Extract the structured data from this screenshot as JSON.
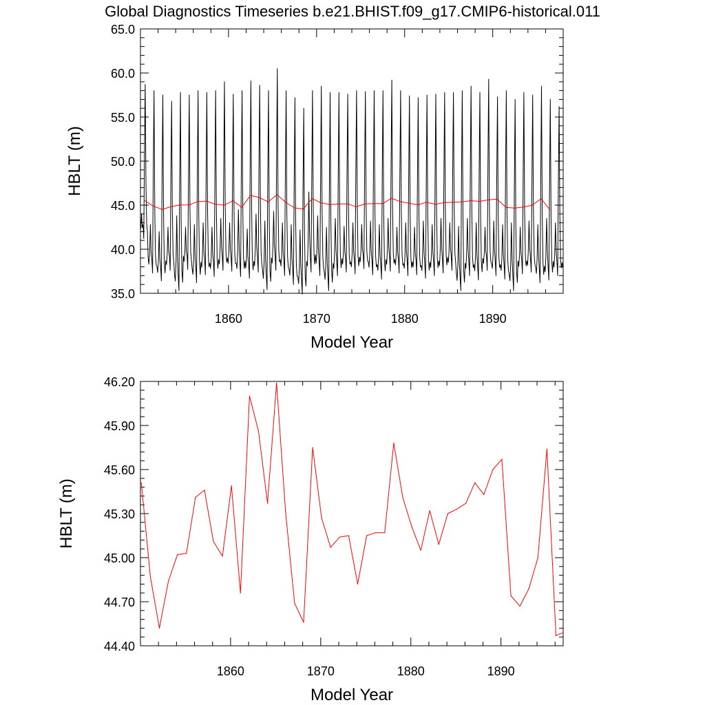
{
  "title": "Global Diagnostics Timeseries b.e21.BHIST.f09_g17.CMIP6-historical.011",
  "colors": {
    "monthly_line": "#000000",
    "annual_line": "#ff0000",
    "axis": "#000000"
  },
  "chart_data": [
    {
      "type": "line",
      "xlabel": "Model Year",
      "ylabel": "HBLT (m)",
      "xlim": [
        1850,
        1898
      ],
      "ylim": [
        35.0,
        65.0
      ],
      "xticks": [
        1860,
        1870,
        1880,
        1890
      ],
      "xtick_labels": [
        "1860",
        "1870",
        "1880",
        "1890"
      ],
      "yticks": [
        35,
        40,
        45,
        50,
        55,
        60,
        65
      ],
      "ytick_labels": [
        "35.0",
        "40.0",
        "45.0",
        "50.0",
        "55.0",
        "60.0",
        "65.0"
      ],
      "grid": false,
      "series": [
        {
          "style": "monthly",
          "color": "#000000",
          "x_start": 1850.04,
          "x_step": 0.0833333,
          "seasonal_min_by_year": [
            41.2,
            37.3,
            36.4,
            37.6,
            35.3,
            37.7,
            36.2,
            37.1,
            36.9,
            37.6,
            37.5,
            36.9,
            36.7,
            37.4,
            35.4,
            37.6,
            37.0,
            36.0,
            34.9,
            37.4,
            37.0,
            35.3,
            37.0,
            37.4,
            37.2,
            37.8,
            37.1,
            36.6,
            37.5,
            37.3,
            37.0,
            37.1,
            36.7,
            37.0,
            37.3,
            37.6,
            35.3,
            37.0,
            36.5,
            37.6,
            37.0,
            36.6,
            35.3,
            37.2,
            37.4,
            36.2,
            36.5,
            37.0
          ],
          "seasonal_max_by_year": [
            58.7,
            58.0,
            57.5,
            56.8,
            57.8,
            57.5,
            58.0,
            57.8,
            58.0,
            59.0,
            57.6,
            58.0,
            59.1,
            58.6,
            58.0,
            60.5,
            58.0,
            57.2,
            56.0,
            58.0,
            58.5,
            57.8,
            57.8,
            57.6,
            58.0,
            57.9,
            58.0,
            58.0,
            59.2,
            58.0,
            57.4,
            57.2,
            57.5,
            57.6,
            57.8,
            57.8,
            58.0,
            58.5,
            57.8,
            59.3,
            57.3,
            58.0,
            57.0,
            57.8,
            57.5,
            58.5,
            57.0,
            56.2
          ],
          "secondary_peak_by_year": [
            44.0,
            42.8,
            42.0,
            42.5,
            43.8,
            42.5,
            42.8,
            43.0,
            42.5,
            43.5,
            43.0,
            44.5,
            42.3,
            44.0,
            43.2,
            44.3,
            43.0,
            42.8,
            42.2,
            46.5,
            43.8,
            42.5,
            43.5,
            42.6,
            43.0,
            42.8,
            43.2,
            42.8,
            43.5,
            42.5,
            43.0,
            42.5,
            43.2,
            42.8,
            43.5,
            43.0,
            42.6,
            43.5,
            43.0,
            42.5,
            43.2,
            42.8,
            43.0,
            42.5,
            43.2,
            42.8,
            43.5,
            43.0
          ]
        },
        {
          "style": "annual",
          "color": "#ff0000",
          "x": [
            1850.5,
            1851.5,
            1852.5,
            1853.5,
            1854.5,
            1855.5,
            1856.5,
            1857.5,
            1858.5,
            1859.5,
            1860.5,
            1861.5,
            1862.5,
            1863.5,
            1864.5,
            1865.5,
            1866.5,
            1867.5,
            1868.5,
            1869.5,
            1870.5,
            1871.5,
            1872.5,
            1873.5,
            1874.5,
            1875.5,
            1876.5,
            1877.5,
            1878.5,
            1879.5,
            1880.5,
            1881.5,
            1882.5,
            1883.5,
            1884.5,
            1885.5,
            1886.5,
            1887.5,
            1888.5,
            1889.5,
            1890.5,
            1891.5,
            1892.5,
            1893.5,
            1894.5,
            1895.5,
            1896.5
          ],
          "values": [
            45.51,
            44.87,
            44.52,
            44.84,
            45.02,
            45.03,
            45.41,
            45.46,
            45.11,
            45.01,
            45.49,
            44.76,
            46.1,
            45.86,
            45.37,
            46.19,
            45.31,
            44.69,
            44.56,
            45.75,
            45.27,
            45.07,
            45.14,
            45.15,
            44.82,
            45.15,
            45.17,
            45.17,
            45.78,
            45.41,
            45.21,
            45.05,
            45.32,
            45.09,
            45.3,
            45.33,
            45.37,
            45.51,
            45.43,
            45.6,
            45.67,
            44.74,
            44.67,
            44.79,
            45.0,
            45.74,
            44.47
          ]
        }
      ]
    },
    {
      "type": "line",
      "xlabel": "Model Year",
      "ylabel": "HBLT (m)",
      "xlim": [
        1850,
        1896.9
      ],
      "ylim": [
        44.4,
        46.2
      ],
      "xticks": [
        1860,
        1870,
        1880,
        1890
      ],
      "xtick_labels": [
        "1860",
        "1870",
        "1880",
        "1890"
      ],
      "yticks": [
        44.4,
        44.7,
        45.0,
        45.3,
        45.6,
        45.9,
        46.2
      ],
      "ytick_labels": [
        "44.40",
        "44.70",
        "45.00",
        "45.30",
        "45.60",
        "45.90",
        "46.20"
      ],
      "grid": false,
      "series": [
        {
          "style": "annual",
          "color": "#ff0000",
          "x": [
            1850.1,
            1851.1,
            1852.1,
            1853.1,
            1854.1,
            1855.1,
            1856.1,
            1857.1,
            1858.1,
            1859.1,
            1860.1,
            1861.1,
            1862.1,
            1863.1,
            1864.1,
            1865.1,
            1866.1,
            1867.1,
            1868.1,
            1869.1,
            1870.1,
            1871.1,
            1872.1,
            1873.1,
            1874.1,
            1875.1,
            1876.1,
            1877.1,
            1878.1,
            1879.1,
            1880.1,
            1881.1,
            1882.1,
            1883.1,
            1884.1,
            1885.1,
            1886.1,
            1887.1,
            1888.1,
            1889.1,
            1890.1,
            1891.1,
            1892.1,
            1893.1,
            1894.1,
            1895.1,
            1896.1,
            1896.9
          ],
          "values": [
            45.51,
            44.87,
            44.52,
            44.84,
            45.02,
            45.03,
            45.41,
            45.46,
            45.11,
            45.01,
            45.49,
            44.76,
            46.1,
            45.86,
            45.37,
            46.19,
            45.31,
            44.69,
            44.56,
            45.75,
            45.27,
            45.07,
            45.14,
            45.15,
            44.82,
            45.15,
            45.17,
            45.17,
            45.78,
            45.41,
            45.21,
            45.05,
            45.32,
            45.09,
            45.3,
            45.33,
            45.37,
            45.51,
            45.43,
            45.6,
            45.67,
            44.74,
            44.67,
            44.79,
            45.0,
            45.74,
            44.47,
            44.49
          ]
        }
      ]
    }
  ]
}
